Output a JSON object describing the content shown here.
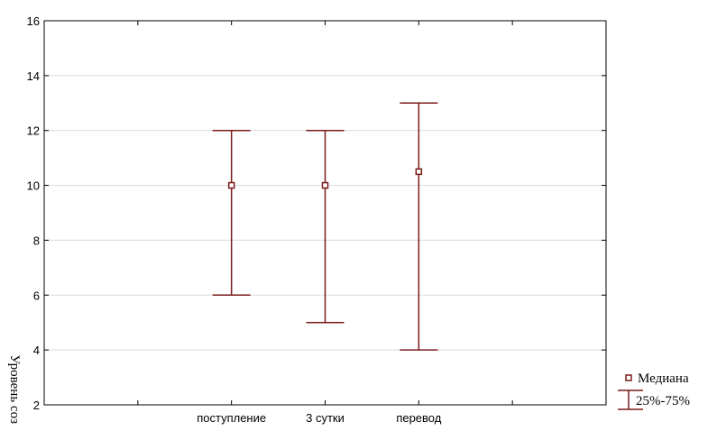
{
  "chart_data": {
    "type": "box",
    "ylabel": "Уровень соз",
    "categories": [
      "поступление",
      "3 сутки",
      "перевод"
    ],
    "median": [
      10,
      10,
      10.5
    ],
    "q25": [
      6,
      5,
      4
    ],
    "q75": [
      12,
      12,
      13
    ],
    "ylim": [
      2,
      16
    ],
    "yticks": [
      "2",
      "4",
      "6",
      "8",
      "10",
      "12",
      "14",
      "16"
    ],
    "grid": true,
    "legend": {
      "position": "right-bottom",
      "median_label": "Медиана",
      "range_label": "25%-75%"
    },
    "color": "#7a1a1a"
  }
}
